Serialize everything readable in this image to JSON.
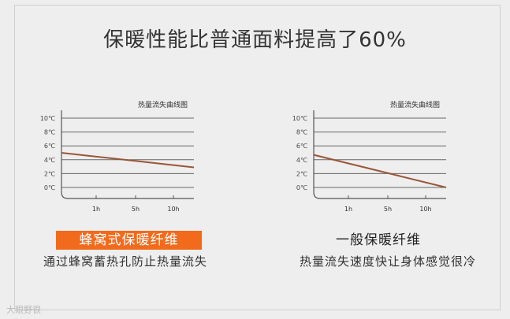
{
  "headline": "保暖性能比普通面料提高了60%",
  "colors": {
    "line": "#9a5536",
    "highlight_bg": "#f26b1d",
    "grid": "#666666",
    "axis": "#555555"
  },
  "chart_data": [
    {
      "type": "line",
      "title": "热量流失曲线图",
      "x_ticks": [
        "1h",
        "5h",
        "10h"
      ],
      "y_ticks": [
        "0℃",
        "2℃",
        "4℃",
        "6℃",
        "8℃",
        "10℃"
      ],
      "ylim": [
        0,
        10
      ],
      "grid": "horizontal",
      "series": [
        {
          "x": [
            0,
            1
          ],
          "values": [
            5,
            2.9
          ]
        }
      ]
    },
    {
      "type": "line",
      "title": "热量流失曲线图",
      "x_ticks": [
        "1h",
        "5h",
        "10h"
      ],
      "y_ticks": [
        "0℃",
        "2℃",
        "4℃",
        "6℃",
        "8℃",
        "10℃"
      ],
      "ylim": [
        0,
        10
      ],
      "grid": "horizontal",
      "series": [
        {
          "x": [
            0,
            1
          ],
          "values": [
            4.7,
            0
          ]
        }
      ]
    }
  ],
  "left_panel": {
    "name": "蜂窝式保暖纤维",
    "desc": "通过蜂窝蓄热孔防止热量流失"
  },
  "right_panel": {
    "name": "一般保暖纤维",
    "desc": "热量流失速度快让身体感觉很冷"
  },
  "watermark": "大眼野很"
}
